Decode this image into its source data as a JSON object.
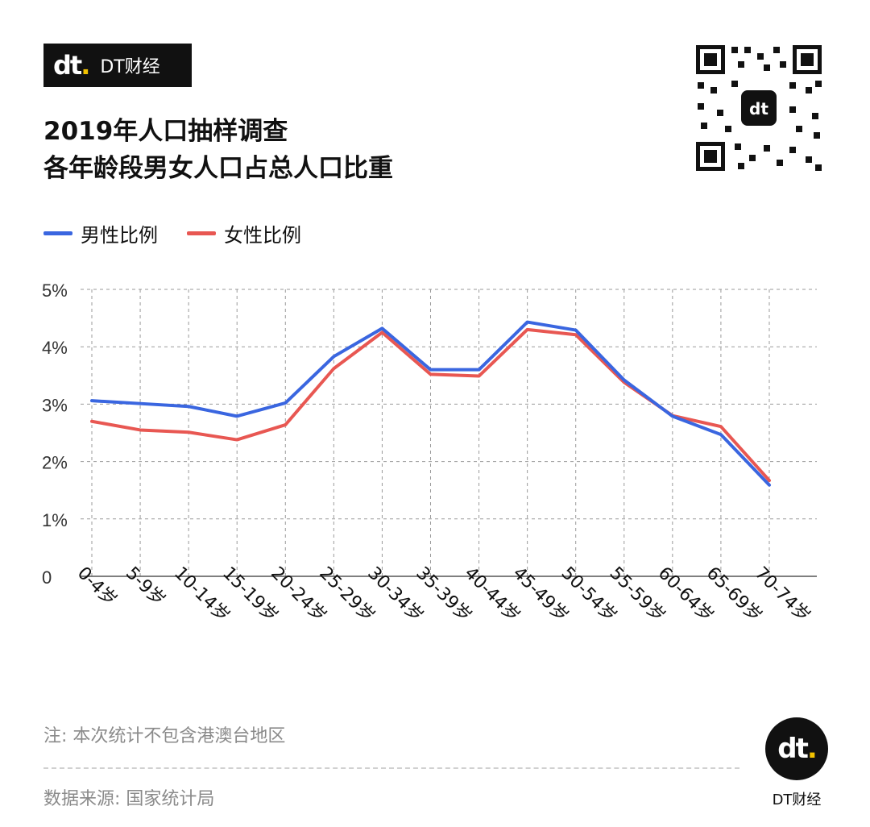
{
  "brand": {
    "logo_text": "dt",
    "name": "DT财经"
  },
  "title_lines": [
    "2019年人口抽样调查",
    "各年龄段男女人口占总人口比重"
  ],
  "legend": [
    {
      "label": "男性比例",
      "color": "#3a66e0"
    },
    {
      "label": "女性比例",
      "color": "#e85752"
    }
  ],
  "chart_data": {
    "type": "line",
    "categories": [
      "0-4岁",
      "5-9岁",
      "10-14岁",
      "15-19岁",
      "20-24岁",
      "25-29岁",
      "30-34岁",
      "35-39岁",
      "40-44岁",
      "45-49岁",
      "50-54岁",
      "55-59岁",
      "60-64岁",
      "65-69岁",
      "70-74岁"
    ],
    "series": [
      {
        "name": "男性比例",
        "color": "#3a66e0",
        "values": [
          3.06,
          3.01,
          2.96,
          2.79,
          3.02,
          3.83,
          4.32,
          3.6,
          3.6,
          4.43,
          4.29,
          3.42,
          2.79,
          2.47,
          1.59
        ]
      },
      {
        "name": "女性比例",
        "color": "#e85752",
        "values": [
          2.7,
          2.55,
          2.51,
          2.38,
          2.64,
          3.62,
          4.25,
          3.52,
          3.49,
          4.3,
          4.21,
          3.38,
          2.8,
          2.61,
          1.67
        ]
      }
    ],
    "y_ticks": [
      "0",
      "1%",
      "2%",
      "3%",
      "4%",
      "5%"
    ],
    "ylim": [
      0,
      5
    ],
    "grid": true,
    "legend_position": "top-left"
  },
  "note": "注: 本次统计不包含港澳台地区",
  "source": "数据来源: 国家统计局",
  "corner_brand": "DT财经"
}
